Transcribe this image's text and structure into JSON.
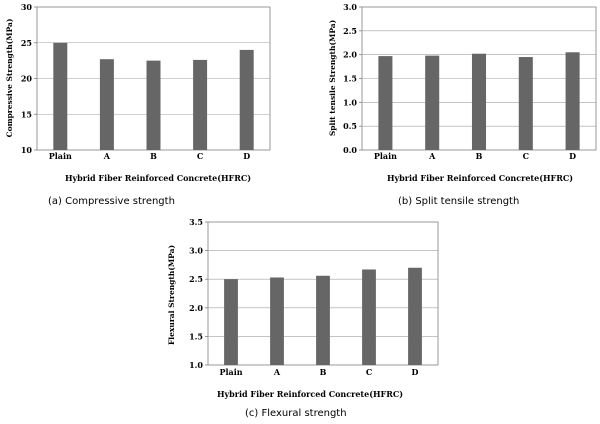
{
  "chart_data": [
    {
      "type": "bar",
      "categories": [
        "Plain",
        "A",
        "B",
        "C",
        "D"
      ],
      "values": [
        25.0,
        22.7,
        22.5,
        22.6,
        24.0
      ],
      "ylabel": "Compressive Strength(MPa)",
      "xlabel": "Hybrid Fiber Reinforced Concrete(HFRC)",
      "ylim": [
        10,
        30
      ],
      "yticks": [
        10,
        15,
        20,
        25,
        30
      ],
      "ytick_labels": [
        "10",
        "15",
        "20",
        "25",
        "30"
      ],
      "grid": true,
      "caption": "(a) Compressive strength",
      "bar_color": "#666666"
    },
    {
      "type": "bar",
      "categories": [
        "Plain",
        "A",
        "B",
        "C",
        "D"
      ],
      "values": [
        1.97,
        1.98,
        2.02,
        1.95,
        2.05
      ],
      "ylabel": "Split tensile Strength(MPa)",
      "xlabel": "Hybrid Fiber Reinforced Concrete(HFRC)",
      "ylim": [
        0,
        3
      ],
      "yticks": [
        0,
        0.5,
        1,
        1.5,
        2,
        2.5,
        3
      ],
      "ytick_labels": [
        "0.0",
        "0.5",
        "1.0",
        "1.5",
        "2.0",
        "2.5",
        "3.0"
      ],
      "grid": true,
      "caption": "(b) Split tensile strength",
      "bar_color": "#666666"
    },
    {
      "type": "bar",
      "categories": [
        "Plain",
        "A",
        "B",
        "C",
        "D"
      ],
      "values": [
        2.5,
        2.53,
        2.56,
        2.67,
        2.7
      ],
      "ylabel": "Flexural Strength(MPa)",
      "xlabel": "Hybrid Fiber Reinforced Concrete(HFRC)",
      "ylim": [
        1,
        3.5
      ],
      "yticks": [
        1,
        1.5,
        2,
        2.5,
        3,
        3.5
      ],
      "ytick_labels": [
        "1.0",
        "1.5",
        "2.0",
        "2.5",
        "3.0",
        "3.5"
      ],
      "grid": true,
      "caption": "(c) Flexural strength",
      "bar_color": "#666666"
    }
  ]
}
